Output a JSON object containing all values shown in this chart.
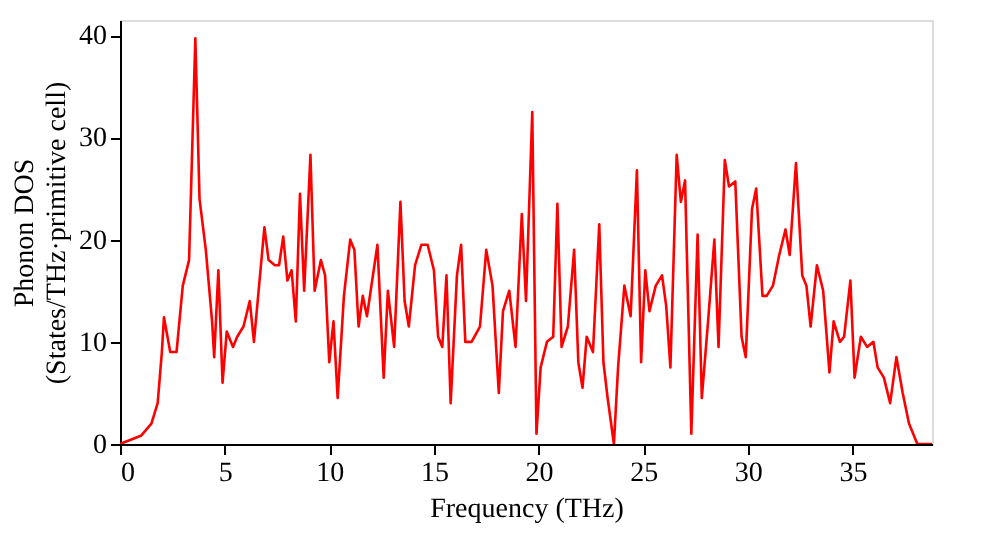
{
  "chart_data": {
    "type": "line",
    "xlabel": "Frequency (THz)",
    "ylabel": "Phonon DOS\n(States/THz·primitive cell)",
    "xlim": [
      0,
      38.8
    ],
    "ylim": [
      0,
      41.5
    ],
    "xticks": [
      0,
      5,
      10,
      15,
      20,
      25,
      30,
      35
    ],
    "yticks": [
      0,
      10,
      20,
      30,
      40
    ],
    "grid": false,
    "line_style": "solid",
    "series": [
      {
        "color": "#ff0000",
        "x": [
          0,
          1,
          1.5,
          1.8,
          2.0,
          2.1,
          2.4,
          2.7,
          3.0,
          3.3,
          3.6,
          3.8,
          4.1,
          4.4,
          4.5,
          4.7,
          4.9,
          5.1,
          5.4,
          5.6,
          5.9,
          6.2,
          6.4,
          6.9,
          7.1,
          7.4,
          7.6,
          7.8,
          8.0,
          8.2,
          8.4,
          8.6,
          8.8,
          9.1,
          9.3,
          9.6,
          9.8,
          10.0,
          10.2,
          10.4,
          10.7,
          11.0,
          11.2,
          11.4,
          11.6,
          11.8,
          12.3,
          12.6,
          12.8,
          13.1,
          13.4,
          13.6,
          13.8,
          14.1,
          14.4,
          14.7,
          15.0,
          15.2,
          15.4,
          15.6,
          15.8,
          16.1,
          16.3,
          16.5,
          16.8,
          17.2,
          17.5,
          17.8,
          18.1,
          18.3,
          18.6,
          18.9,
          19.2,
          19.4,
          19.7,
          19.9,
          20.1,
          20.4,
          20.7,
          20.9,
          21.1,
          21.4,
          21.7,
          21.9,
          22.1,
          22.3,
          22.6,
          22.9,
          23.1,
          23.3,
          23.6,
          23.8,
          24.1,
          24.4,
          24.7,
          24.9,
          25.1,
          25.3,
          25.6,
          25.9,
          26.1,
          26.3,
          26.6,
          26.8,
          27.0,
          27.3,
          27.6,
          27.8,
          28.1,
          28.4,
          28.6,
          28.9,
          29.1,
          29.4,
          29.7,
          29.9,
          30.2,
          30.4,
          30.7,
          30.9,
          31.2,
          31.5,
          31.8,
          32.0,
          32.3,
          32.6,
          32.8,
          33.0,
          33.3,
          33.6,
          33.9,
          34.1,
          34.4,
          34.6,
          34.9,
          35.1,
          35.4,
          35.7,
          36.0,
          36.2,
          36.5,
          36.8,
          37.1,
          37.4,
          37.7,
          38.1,
          38.8
        ],
        "values": [
          0,
          0.8,
          2,
          4,
          9,
          12.4,
          9,
          9,
          15.5,
          18,
          39.7,
          24,
          19,
          12,
          8.5,
          17,
          6,
          11,
          9.5,
          10.5,
          11.5,
          14,
          10,
          21.2,
          18,
          17.5,
          17.5,
          20.3,
          16,
          17,
          12,
          24.5,
          15,
          28.3,
          15,
          18,
          16.5,
          8,
          12,
          4.5,
          14.5,
          20,
          19,
          11.5,
          14.5,
          12.5,
          19.5,
          6.5,
          15,
          9.5,
          23.7,
          14,
          11.5,
          17.5,
          19.5,
          19.5,
          17,
          10.5,
          9.5,
          16.5,
          4,
          16.5,
          19.5,
          10,
          10,
          11.5,
          19,
          15.5,
          5,
          13,
          15,
          9.5,
          22.5,
          14,
          32.5,
          1,
          7.5,
          10,
          10.5,
          23.5,
          9.5,
          11.5,
          19,
          8,
          5.5,
          10.5,
          9,
          21.5,
          8,
          4.5,
          0,
          7.5,
          15.5,
          12.5,
          26.8,
          8,
          17,
          13,
          15.5,
          16.5,
          13.5,
          7.5,
          28.3,
          23.7,
          25.8,
          1,
          20.5,
          4.5,
          12,
          20,
          9.5,
          27.8,
          25.2,
          25.7,
          10.5,
          8.5,
          23,
          25,
          14.5,
          14.5,
          15.5,
          18.5,
          21,
          18.5,
          27.5,
          16.5,
          15.5,
          11.5,
          17.5,
          15,
          7,
          12,
          10,
          10.5,
          16,
          6.5,
          10.5,
          9.5,
          10,
          7.5,
          6.5,
          4,
          8.5,
          5,
          2,
          0,
          0
        ]
      }
    ]
  }
}
